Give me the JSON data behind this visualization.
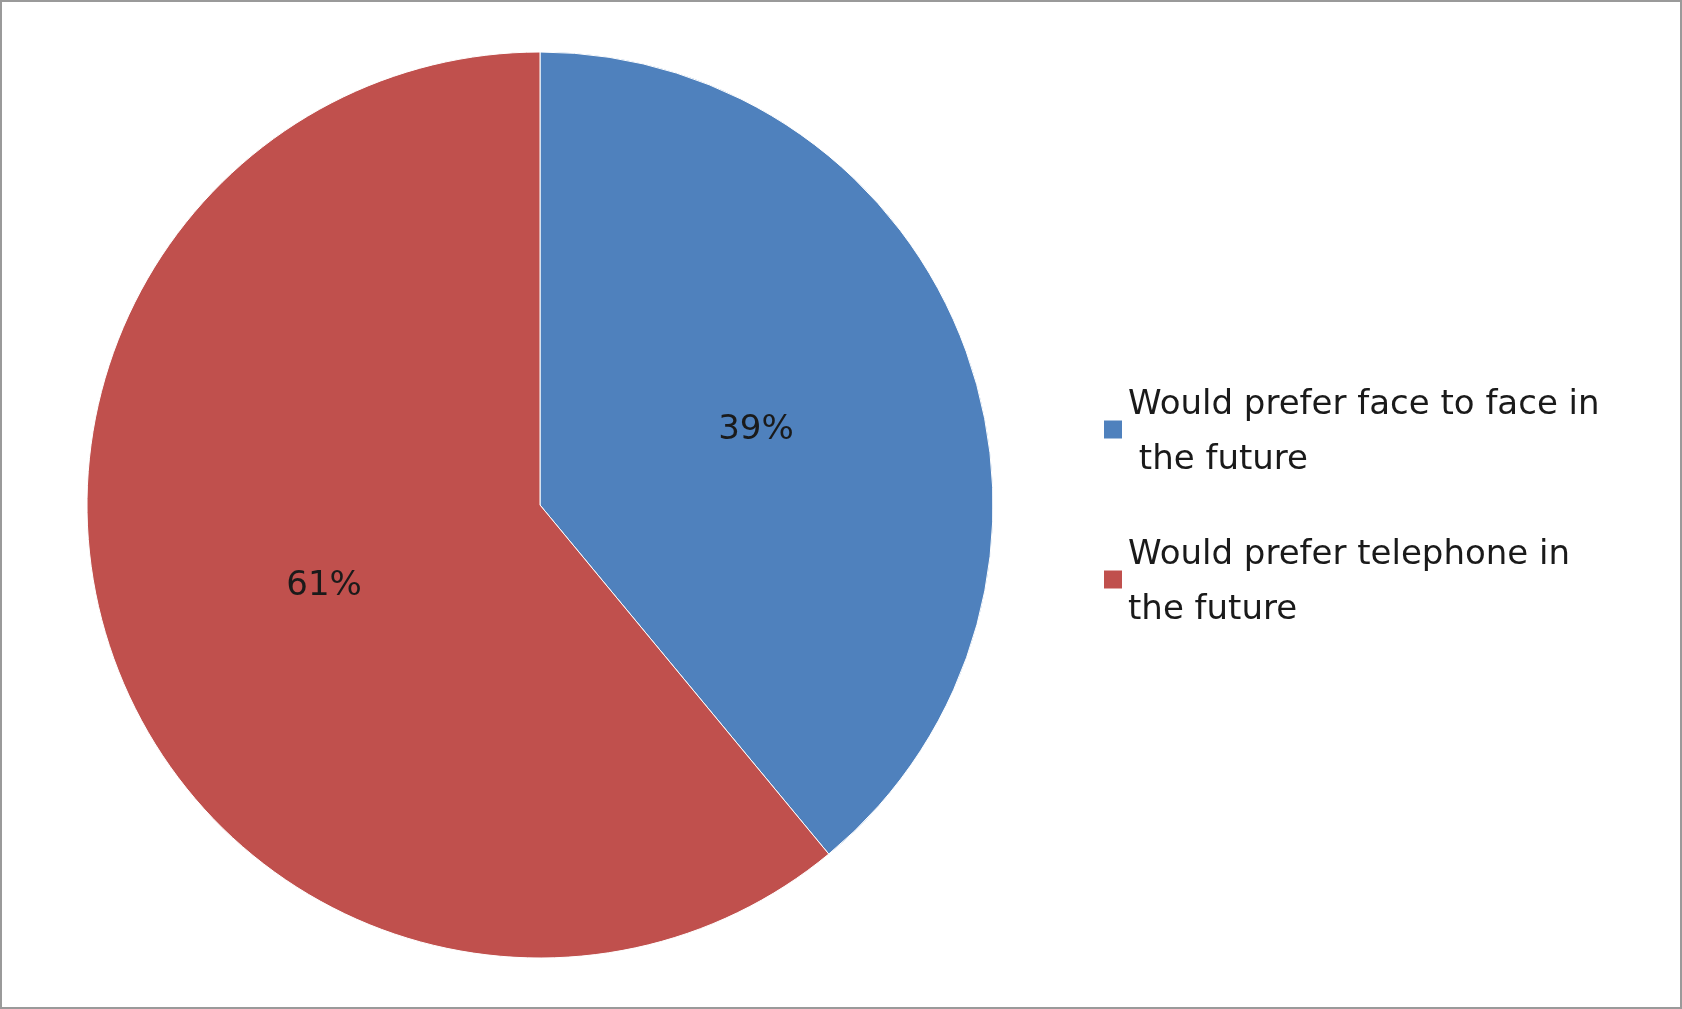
{
  "chart_data": {
    "type": "pie",
    "categories": [
      "Would prefer face to face in the future",
      "Would prefer telephone in the future"
    ],
    "values": [
      39,
      61
    ],
    "colors": [
      "#4f81bd",
      "#c0504d"
    ],
    "value_labels": [
      "39%",
      "61%"
    ],
    "legend": "right"
  }
}
